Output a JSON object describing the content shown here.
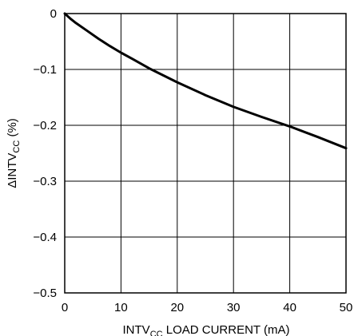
{
  "chart_data": {
    "type": "line",
    "title": "",
    "xlabel": {
      "main": "INTV",
      "sub": "CC",
      "rest": " LOAD CURRENT (mA)"
    },
    "ylabel": {
      "main": "ΔINTV",
      "sub": "CC",
      "rest": " (%)"
    },
    "xlim": [
      0,
      50
    ],
    "ylim": [
      -0.5,
      0
    ],
    "xticks": [
      0,
      10,
      20,
      30,
      40,
      50
    ],
    "yticks": [
      0,
      -0.1,
      -0.2,
      -0.3,
      -0.4,
      -0.5
    ],
    "xtick_labels": [
      "0",
      "10",
      "20",
      "30",
      "40",
      "50"
    ],
    "ytick_labels": [
      "0",
      "−0.1",
      "−0.2",
      "−0.3",
      "−0.4",
      "−0.5"
    ],
    "grid": true,
    "series": [
      {
        "color": "#000000",
        "x": [
          0,
          1,
          2,
          4,
          6,
          8,
          10,
          12,
          15,
          20,
          25,
          30,
          35,
          40,
          45,
          50
        ],
        "y": [
          0,
          -0.009,
          -0.017,
          -0.031,
          -0.045,
          -0.058,
          -0.07,
          -0.081,
          -0.098,
          -0.123,
          -0.146,
          -0.167,
          -0.185,
          -0.202,
          -0.221,
          -0.241
        ]
      }
    ]
  }
}
